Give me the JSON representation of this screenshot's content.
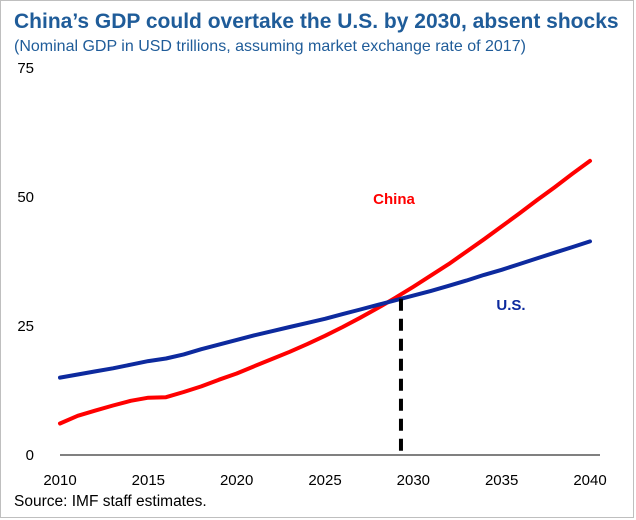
{
  "chart_data": {
    "type": "line",
    "title": "China’s GDP could overtake the U.S. by 2030,  absent shocks",
    "subtitle": "(Nominal GDP in USD trillions, assuming market exchange rate of 2017)",
    "source": "Source: IMF staff estimates.",
    "xlim": [
      2010,
      2040
    ],
    "ylim": [
      0,
      75
    ],
    "xticks": [
      2010,
      2015,
      2020,
      2025,
      2030,
      2035,
      2040
    ],
    "yticks": [
      0,
      25,
      50,
      75
    ],
    "grid": false,
    "legend": "none",
    "x": [
      2010,
      2011,
      2012,
      2013,
      2014,
      2015,
      2016,
      2017,
      2018,
      2019,
      2020,
      2021,
      2022,
      2023,
      2024,
      2025,
      2026,
      2027,
      2028,
      2029,
      2030,
      2031,
      2032,
      2033,
      2034,
      2035,
      2036,
      2037,
      2038,
      2039,
      2040
    ],
    "series": [
      {
        "name": "China",
        "color": "#ff0000",
        "values": [
          6.1,
          7.6,
          8.6,
          9.6,
          10.5,
          11.1,
          11.2,
          12.2,
          13.3,
          14.6,
          15.8,
          17.2,
          18.6,
          20.0,
          21.5,
          23.1,
          24.8,
          26.6,
          28.5,
          30.5,
          32.6,
          34.8,
          37.0,
          39.4,
          41.8,
          44.3,
          46.8,
          49.4,
          51.9,
          54.5,
          57.0
        ]
      },
      {
        "name": "U.S.",
        "color": "#0d2a9e",
        "values": [
          15.0,
          15.6,
          16.2,
          16.8,
          17.5,
          18.2,
          18.7,
          19.5,
          20.5,
          21.4,
          22.3,
          23.2,
          24.0,
          24.8,
          25.6,
          26.4,
          27.3,
          28.2,
          29.1,
          30.0,
          30.9,
          31.8,
          32.8,
          33.8,
          34.9,
          35.9,
          37.0,
          38.1,
          39.2,
          40.3,
          41.4
        ]
      }
    ],
    "annotations": [
      {
        "type": "vertical-dashed-line",
        "x": 2029.3,
        "color": "#000000"
      }
    ]
  }
}
